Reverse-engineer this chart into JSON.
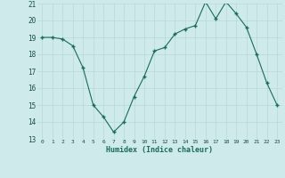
{
  "x": [
    0,
    1,
    2,
    3,
    4,
    5,
    6,
    7,
    8,
    9,
    10,
    11,
    12,
    13,
    14,
    15,
    16,
    17,
    18,
    19,
    20,
    21,
    22,
    23
  ],
  "y": [
    19,
    19,
    18.9,
    18.5,
    17.2,
    15.0,
    14.3,
    13.4,
    14.0,
    15.5,
    16.7,
    18.2,
    18.4,
    19.2,
    19.5,
    19.7,
    21.1,
    20.1,
    21.1,
    20.4,
    19.6,
    18.0,
    16.3,
    15.0
  ],
  "xlabel": "Humidex (Indice chaleur)",
  "line_color": "#1a6b5a",
  "bg_color": "#ceeaea",
  "grid_color": "#b8d8d8",
  "ylim": [
    13,
    21
  ],
  "xlim": [
    -0.5,
    23.5
  ],
  "yticks": [
    13,
    14,
    15,
    16,
    17,
    18,
    19,
    20,
    21
  ],
  "xtick_labels": [
    "0",
    "1",
    "2",
    "3",
    "4",
    "5",
    "6",
    "7",
    "8",
    "9",
    "10",
    "11",
    "12",
    "13",
    "14",
    "15",
    "16",
    "17",
    "18",
    "19",
    "20",
    "21",
    "22",
    "23"
  ]
}
